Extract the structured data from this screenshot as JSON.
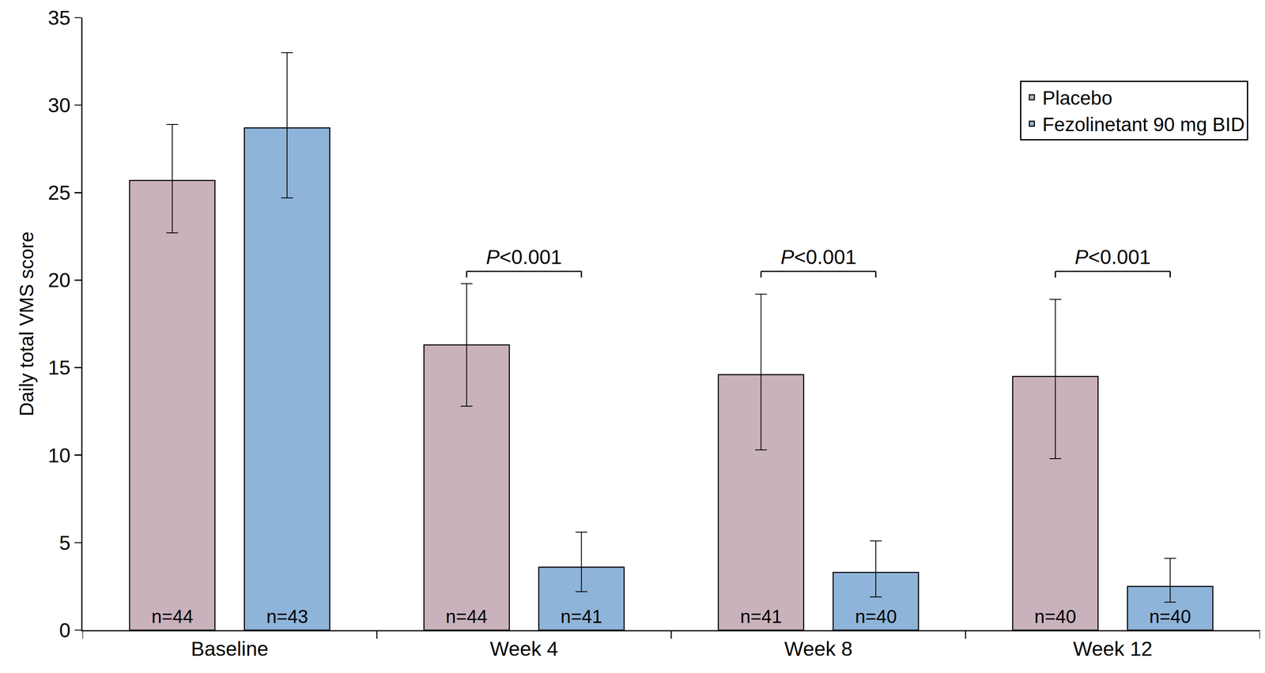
{
  "chart_data": {
    "type": "bar",
    "y_label": "Daily total VMS score",
    "categories": [
      "Baseline",
      "Week 4",
      "Week 8",
      "Week 12"
    ],
    "series": [
      {
        "name": "Placebo",
        "color": "#c9b2bc",
        "values": [
          25.7,
          16.3,
          14.6,
          14.5
        ],
        "error_low": [
          22.7,
          12.8,
          10.3,
          9.8
        ],
        "error_high": [
          28.9,
          19.8,
          19.2,
          18.9
        ],
        "n_labels": [
          "n=44",
          "n=44",
          "n=41",
          "n=40"
        ]
      },
      {
        "name": "Fezolinetant 90 mg BID",
        "color": "#8fb4d9",
        "values": [
          28.7,
          3.6,
          3.3,
          2.5
        ],
        "error_low": [
          24.7,
          2.2,
          1.9,
          1.6
        ],
        "error_high": [
          33.0,
          5.6,
          5.1,
          4.1
        ],
        "n_labels": [
          "n=43",
          "n=41",
          "n=40",
          "n=40"
        ]
      }
    ],
    "annotations": [
      {
        "text": "P<0.001",
        "category": "Week 4"
      },
      {
        "text": "P<0.001",
        "category": "Week 8"
      },
      {
        "text": "P<0.001",
        "category": "Week 12"
      }
    ],
    "ylim": [
      0,
      35
    ],
    "yticks": [
      0,
      5,
      10,
      15,
      20,
      25,
      30,
      35
    ],
    "grid": false,
    "legend": "top right"
  }
}
